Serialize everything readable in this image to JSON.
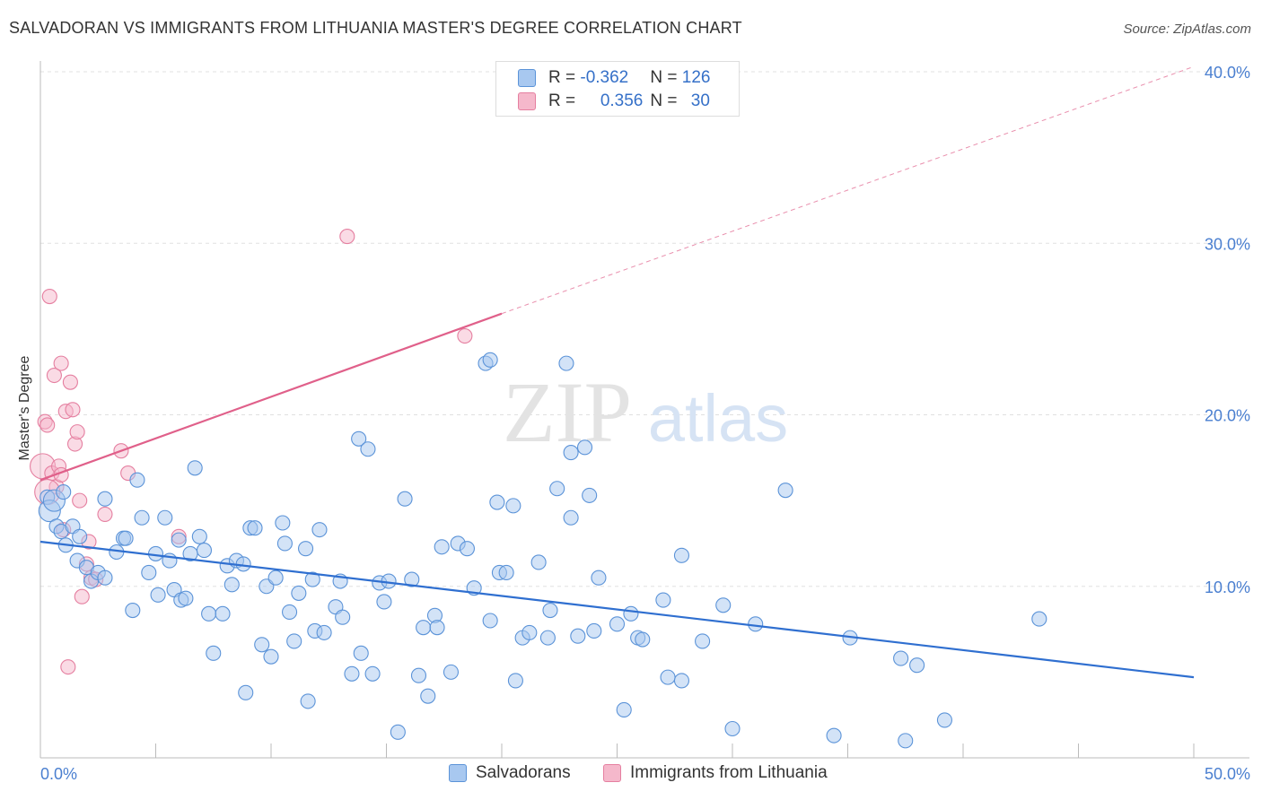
{
  "header": {
    "title": "SALVADORAN VS IMMIGRANTS FROM LITHUANIA MASTER'S DEGREE CORRELATION CHART",
    "source": "Source: ZipAtlas.com"
  },
  "watermark": {
    "zip": "ZIP",
    "atlas": "atlas"
  },
  "legend": {
    "series": [
      {
        "r_label": "R = ",
        "r_value": "-0.362",
        "n_label": "N = ",
        "n_value": "126"
      },
      {
        "r_label": "R = ",
        "r_value": "0.356",
        "n_label": "N = ",
        "n_value": "30"
      }
    ]
  },
  "colors": {
    "blue_fill": "#a8c8f0",
    "blue_stroke": "#5b93d8",
    "blue_line": "#2f6fd0",
    "pink_fill": "#f5b8cb",
    "pink_stroke": "#e57fa0",
    "pink_line": "#e0608a",
    "axis_label": "#4a7fd0",
    "grid": "#e0e0e0"
  },
  "chart_data": {
    "type": "scatter",
    "title": "SALVADORAN VS IMMIGRANTS FROM LITHUANIA MASTER'S DEGREE CORRELATION CHART",
    "xlabel": "",
    "ylabel": "Master's Degree",
    "xlim": [
      0,
      50
    ],
    "ylim": [
      0,
      40
    ],
    "x_tick_labels": [
      "0.0%",
      "50.0%"
    ],
    "y_ticks": [
      10,
      20,
      30,
      40
    ],
    "y_tick_labels": [
      "10.0%",
      "20.0%",
      "30.0%",
      "40.0%"
    ],
    "grid": true,
    "legend_position": "top-center",
    "series": [
      {
        "name": "Salvadorans",
        "color": "#a8c8f0",
        "trend": {
          "x": [
            0,
            50
          ],
          "y": [
            12.6,
            4.7
          ],
          "dashed": false
        },
        "points": [
          [
            0.3,
            15.2
          ],
          [
            0.4,
            14.4
          ],
          [
            0.6,
            15.0
          ],
          [
            0.7,
            13.5
          ],
          [
            0.9,
            13.2
          ],
          [
            1.0,
            15.5
          ],
          [
            1.1,
            12.4
          ],
          [
            1.4,
            13.5
          ],
          [
            1.6,
            11.5
          ],
          [
            1.7,
            12.9
          ],
          [
            2.0,
            11.1
          ],
          [
            2.2,
            10.3
          ],
          [
            2.5,
            10.8
          ],
          [
            2.8,
            10.5
          ],
          [
            2.8,
            15.1
          ],
          [
            3.3,
            12.0
          ],
          [
            3.6,
            12.8
          ],
          [
            3.7,
            12.8
          ],
          [
            4.0,
            8.6
          ],
          [
            4.2,
            16.2
          ],
          [
            4.4,
            14.0
          ],
          [
            4.7,
            10.8
          ],
          [
            5.0,
            11.9
          ],
          [
            5.1,
            9.5
          ],
          [
            5.4,
            14.0
          ],
          [
            5.6,
            11.5
          ],
          [
            5.8,
            9.8
          ],
          [
            6.0,
            12.7
          ],
          [
            6.1,
            9.2
          ],
          [
            6.3,
            9.3
          ],
          [
            6.5,
            11.9
          ],
          [
            6.7,
            16.9
          ],
          [
            6.9,
            12.9
          ],
          [
            7.1,
            12.1
          ],
          [
            7.3,
            8.4
          ],
          [
            7.5,
            6.1
          ],
          [
            7.9,
            8.4
          ],
          [
            8.1,
            11.2
          ],
          [
            8.3,
            10.1
          ],
          [
            8.5,
            11.5
          ],
          [
            8.8,
            11.3
          ],
          [
            8.9,
            3.8
          ],
          [
            9.1,
            13.4
          ],
          [
            9.3,
            13.4
          ],
          [
            9.6,
            6.6
          ],
          [
            9.8,
            10.0
          ],
          [
            10.0,
            5.9
          ],
          [
            10.2,
            10.5
          ],
          [
            10.5,
            13.7
          ],
          [
            10.6,
            12.5
          ],
          [
            10.8,
            8.5
          ],
          [
            11.0,
            6.8
          ],
          [
            11.2,
            9.6
          ],
          [
            11.5,
            12.2
          ],
          [
            11.6,
            3.3
          ],
          [
            11.8,
            10.4
          ],
          [
            11.9,
            7.4
          ],
          [
            12.1,
            13.3
          ],
          [
            12.3,
            7.3
          ],
          [
            12.8,
            8.8
          ],
          [
            13.0,
            10.3
          ],
          [
            13.1,
            8.2
          ],
          [
            13.5,
            4.9
          ],
          [
            13.8,
            18.6
          ],
          [
            13.9,
            6.1
          ],
          [
            14.2,
            18.0
          ],
          [
            14.4,
            4.9
          ],
          [
            14.7,
            10.2
          ],
          [
            14.9,
            9.1
          ],
          [
            15.1,
            10.3
          ],
          [
            15.5,
            1.5
          ],
          [
            15.8,
            15.1
          ],
          [
            16.1,
            10.4
          ],
          [
            16.4,
            4.8
          ],
          [
            16.6,
            7.6
          ],
          [
            16.8,
            3.6
          ],
          [
            17.1,
            8.3
          ],
          [
            17.2,
            7.6
          ],
          [
            17.4,
            12.3
          ],
          [
            17.8,
            5.0
          ],
          [
            18.1,
            12.5
          ],
          [
            18.5,
            12.2
          ],
          [
            18.8,
            9.9
          ],
          [
            19.3,
            23.0
          ],
          [
            19.5,
            23.2
          ],
          [
            19.5,
            8.0
          ],
          [
            19.8,
            14.9
          ],
          [
            19.9,
            10.8
          ],
          [
            20.2,
            10.8
          ],
          [
            20.5,
            14.7
          ],
          [
            20.6,
            4.5
          ],
          [
            20.9,
            7.0
          ],
          [
            21.2,
            7.3
          ],
          [
            21.6,
            11.4
          ],
          [
            22.0,
            7.0
          ],
          [
            22.1,
            8.6
          ],
          [
            22.4,
            15.7
          ],
          [
            22.8,
            23.0
          ],
          [
            23.0,
            17.8
          ],
          [
            23.3,
            7.1
          ],
          [
            23.6,
            18.1
          ],
          [
            23.8,
            15.3
          ],
          [
            24.0,
            7.4
          ],
          [
            24.2,
            10.5
          ],
          [
            25.0,
            7.8
          ],
          [
            25.3,
            2.8
          ],
          [
            25.6,
            8.4
          ],
          [
            25.9,
            7.0
          ],
          [
            26.1,
            6.9
          ],
          [
            27.0,
            9.2
          ],
          [
            27.2,
            4.7
          ],
          [
            27.8,
            4.5
          ],
          [
            27.8,
            11.8
          ],
          [
            28.7,
            6.8
          ],
          [
            29.6,
            8.9
          ],
          [
            30.0,
            1.7
          ],
          [
            31.0,
            7.8
          ],
          [
            32.3,
            15.6
          ],
          [
            34.4,
            1.3
          ],
          [
            35.1,
            7.0
          ],
          [
            37.3,
            5.8
          ],
          [
            37.5,
            1.0
          ],
          [
            38.0,
            5.4
          ],
          [
            39.2,
            2.2
          ],
          [
            43.3,
            8.1
          ],
          [
            23.0,
            14.0
          ]
        ]
      },
      {
        "name": "Immigrants from Lithuania",
        "color": "#f5b8cb",
        "trend": {
          "x": [
            0,
            20
          ],
          "y": [
            16.2,
            25.9
          ],
          "dashed": false,
          "extension": {
            "x": [
              20,
              50
            ],
            "y": [
              25.9,
              40.3
            ],
            "dashed": true
          }
        },
        "points": [
          [
            0.1,
            17.0
          ],
          [
            0.2,
            19.6
          ],
          [
            0.3,
            19.4
          ],
          [
            0.4,
            26.9
          ],
          [
            0.5,
            16.6
          ],
          [
            0.6,
            22.3
          ],
          [
            0.7,
            15.8
          ],
          [
            0.8,
            17.0
          ],
          [
            0.9,
            23.0
          ],
          [
            0.9,
            16.5
          ],
          [
            1.0,
            13.3
          ],
          [
            1.1,
            20.2
          ],
          [
            1.3,
            21.9
          ],
          [
            1.4,
            20.3
          ],
          [
            1.5,
            18.3
          ],
          [
            1.6,
            19.0
          ],
          [
            1.7,
            15.0
          ],
          [
            1.8,
            9.4
          ],
          [
            2.0,
            11.3
          ],
          [
            2.1,
            12.6
          ],
          [
            2.2,
            10.5
          ],
          [
            2.4,
            10.4
          ],
          [
            2.8,
            14.2
          ],
          [
            3.5,
            17.9
          ],
          [
            3.8,
            16.6
          ],
          [
            6.0,
            12.9
          ],
          [
            13.3,
            30.4
          ],
          [
            18.4,
            24.6
          ],
          [
            1.2,
            5.3
          ],
          [
            0.3,
            15.5
          ]
        ]
      }
    ]
  },
  "bottom_legend": {
    "items": [
      "Salvadorans",
      "Immigrants from Lithuania"
    ]
  }
}
